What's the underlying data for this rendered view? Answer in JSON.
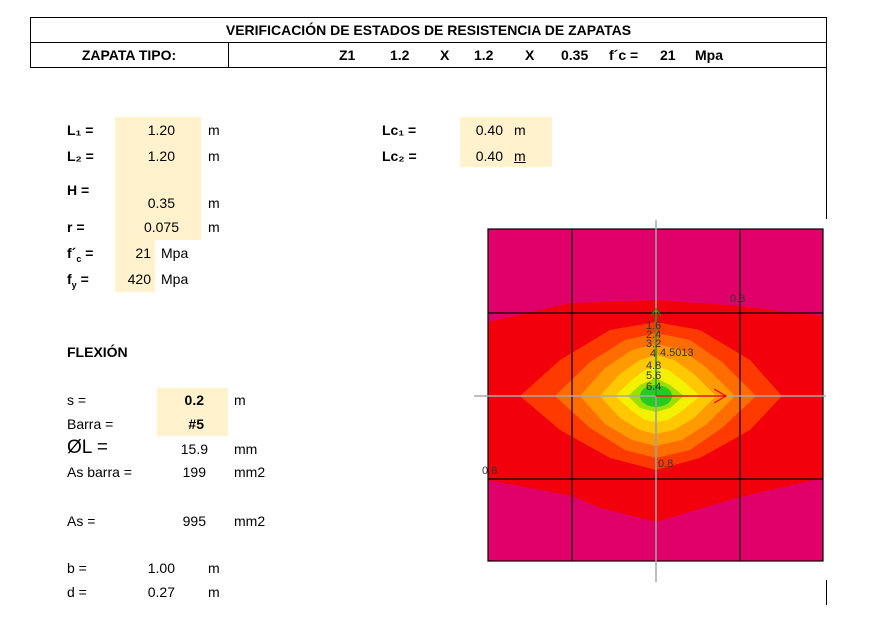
{
  "header": {
    "title": "VERIFICACIÓN DE ESTADOS DE RESISTENCIA DE ZAPATAS",
    "type_label": "ZAPATA TIPO:",
    "type_cells": [
      "Z1",
      "1.2",
      "X",
      "1.2",
      "X",
      "0.35",
      "f´c =",
      "21",
      "Mpa"
    ]
  },
  "inputs": {
    "L1": {
      "label": "L₁ =",
      "value": "1.20",
      "unit": "m"
    },
    "L2": {
      "label": "L₂ =",
      "value": "1.20",
      "unit": "m"
    },
    "H": {
      "label": "H =",
      "value": "0.35",
      "unit": "m"
    },
    "r": {
      "label": "r =",
      "value": "0.075",
      "unit": "m"
    },
    "fc": {
      "label": {
        "base": "f´",
        "sub": "c",
        "tail": " ="
      },
      "value": "21",
      "unit": "Mpa"
    },
    "fy": {
      "label": {
        "base": "f",
        "sub": "y",
        "tail": " ="
      },
      "value": "420",
      "unit": "Mpa"
    },
    "Lc1": {
      "label": "Lc₁ =",
      "value": "0.40",
      "unit": "m"
    },
    "Lc2": {
      "label": "Lc₂ =",
      "value": "0.40",
      "unit": "m"
    }
  },
  "flexion": {
    "title": "FLEXIÓN",
    "s": {
      "label": "s =",
      "value": "0.2",
      "unit": "m"
    },
    "barra": {
      "label": "Barra =",
      "value": "#5"
    },
    "phiL": {
      "label": "ØL =",
      "value": "15.9",
      "unit": "mm"
    },
    "as_barra": {
      "label": "As barra =",
      "value": "199",
      "unit": "mm2"
    },
    "as": {
      "label": "As =",
      "value": "995",
      "unit": "mm2"
    },
    "b": {
      "label": "b =",
      "value": "1.00",
      "unit": "m"
    },
    "d": {
      "label": "d =",
      "value": "0.27",
      "unit": "m"
    }
  },
  "plot": {
    "labels": [
      "0.8",
      "1.6",
      "2.4",
      "3.2",
      "4",
      "4.5013",
      "4.8",
      "5.6",
      "6.4",
      "0.8",
      "0.8"
    ]
  }
}
